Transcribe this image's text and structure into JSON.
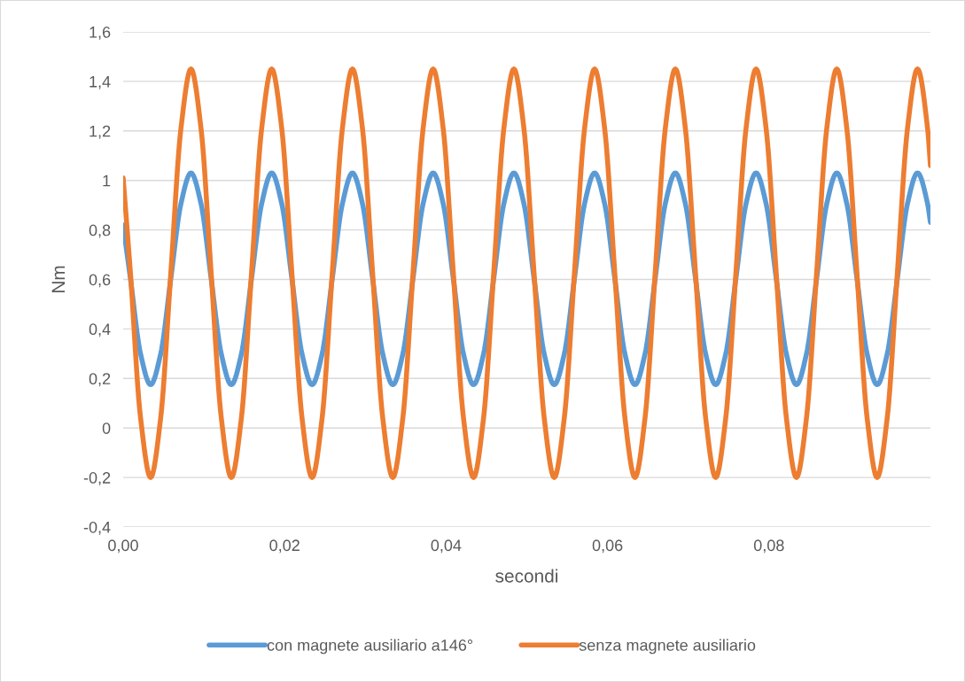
{
  "chart_data": {
    "type": "line",
    "xlabel": "secondi",
    "ylabel": "Nm",
    "x": [
      0,
      0.0009,
      0.00215,
      0.0034,
      0.00465,
      0.0059,
      0.00715,
      0.0084,
      0.00965,
      0.0109,
      0.01215,
      0.0134,
      0.01465,
      0.0159,
      0.01715,
      0.0184,
      0.01965,
      0.0209,
      0.02215,
      0.0234,
      0.02465,
      0.0259,
      0.02715,
      0.0284,
      0.02965,
      0.0309,
      0.03215,
      0.0334,
      0.03465,
      0.0359,
      0.03715,
      0.0384,
      0.03965,
      0.0409,
      0.04215,
      0.0434,
      0.04465,
      0.0459,
      0.04715,
      0.0484,
      0.04965,
      0.0509,
      0.05215,
      0.0534,
      0.05465,
      0.0559,
      0.05715,
      0.0584,
      0.05965,
      0.0609,
      0.06215,
      0.0634,
      0.06465,
      0.0659,
      0.06715,
      0.0684,
      0.06965,
      0.0709,
      0.07215,
      0.0734,
      0.07465,
      0.0759,
      0.07715,
      0.0784,
      0.07965,
      0.0809,
      0.08215,
      0.0834,
      0.08465,
      0.0859,
      0.08715,
      0.0884,
      0.08965,
      0.0909,
      0.09215,
      0.0934,
      0.09465,
      0.0959,
      0.09715,
      0.0984,
      0.09965,
      0.1
    ],
    "series": [
      {
        "name": "con magnete ausiliario a146°",
        "color": "#5b9bd5",
        "values": [
          0.82,
          0.603,
          0.3,
          0.175,
          0.3,
          0.603,
          0.905,
          1.03,
          0.905,
          0.603,
          0.3,
          0.175,
          0.3,
          0.603,
          0.905,
          1.03,
          0.905,
          0.603,
          0.3,
          0.175,
          0.3,
          0.603,
          0.905,
          1.03,
          0.905,
          0.603,
          0.3,
          0.175,
          0.3,
          0.603,
          0.905,
          1.03,
          0.905,
          0.603,
          0.3,
          0.175,
          0.3,
          0.603,
          0.905,
          1.03,
          0.905,
          0.603,
          0.3,
          0.175,
          0.3,
          0.603,
          0.905,
          1.03,
          0.905,
          0.603,
          0.3,
          0.175,
          0.3,
          0.603,
          0.905,
          1.03,
          0.905,
          0.603,
          0.3,
          0.175,
          0.3,
          0.603,
          0.905,
          1.03,
          0.905,
          0.603,
          0.3,
          0.175,
          0.3,
          0.603,
          0.905,
          1.03,
          0.905,
          0.603,
          0.3,
          0.175,
          0.3,
          0.603,
          0.905,
          1.03,
          0.905,
          0.83
        ]
      },
      {
        "name": "senza magnete ausiliario",
        "color": "#ed7d31",
        "values": [
          1.01,
          0.625,
          0.042,
          -0.2,
          0.042,
          0.625,
          1.208,
          1.45,
          1.208,
          0.625,
          0.042,
          -0.2,
          0.042,
          0.625,
          1.208,
          1.45,
          1.208,
          0.625,
          0.042,
          -0.2,
          0.042,
          0.625,
          1.208,
          1.45,
          1.208,
          0.625,
          0.042,
          -0.2,
          0.042,
          0.625,
          1.208,
          1.45,
          1.208,
          0.625,
          0.042,
          -0.2,
          0.042,
          0.625,
          1.208,
          1.45,
          1.208,
          0.625,
          0.042,
          -0.2,
          0.042,
          0.625,
          1.208,
          1.45,
          1.208,
          0.625,
          0.042,
          -0.2,
          0.042,
          0.625,
          1.208,
          1.45,
          1.208,
          0.625,
          0.042,
          -0.2,
          0.042,
          0.625,
          1.208,
          1.45,
          1.208,
          0.625,
          0.042,
          -0.2,
          0.042,
          0.625,
          1.208,
          1.45,
          1.208,
          0.625,
          0.042,
          -0.2,
          0.042,
          0.625,
          1.208,
          1.45,
          1.208,
          1.06
        ]
      }
    ],
    "xlim": [
      0,
      0.1
    ],
    "xticks": [
      {
        "value": 0,
        "label": "0,00"
      },
      {
        "value": 0.02,
        "label": "0,02"
      },
      {
        "value": 0.04,
        "label": "0,04"
      },
      {
        "value": 0.06,
        "label": "0,06"
      },
      {
        "value": 0.08,
        "label": "0,08"
      }
    ],
    "ylim": [
      -0.4,
      1.6
    ],
    "yticks": [
      {
        "value": -0.4,
        "label": "-0,4"
      },
      {
        "value": -0.2,
        "label": "-0,2"
      },
      0,
      {
        "value": 0.2,
        "label": "0,2"
      },
      {
        "value": 0.4,
        "label": "0,4"
      },
      {
        "value": 0.6,
        "label": "0,6"
      },
      {
        "value": 0.8,
        "label": "0,8"
      },
      1,
      {
        "value": 1.2,
        "label": "1,2"
      },
      {
        "value": 1.4,
        "label": "1,4"
      },
      {
        "value": 1.6,
        "label": "1,6"
      }
    ],
    "grid": "y",
    "legend": "bottom",
    "marker": "none",
    "line_style": "solid"
  }
}
